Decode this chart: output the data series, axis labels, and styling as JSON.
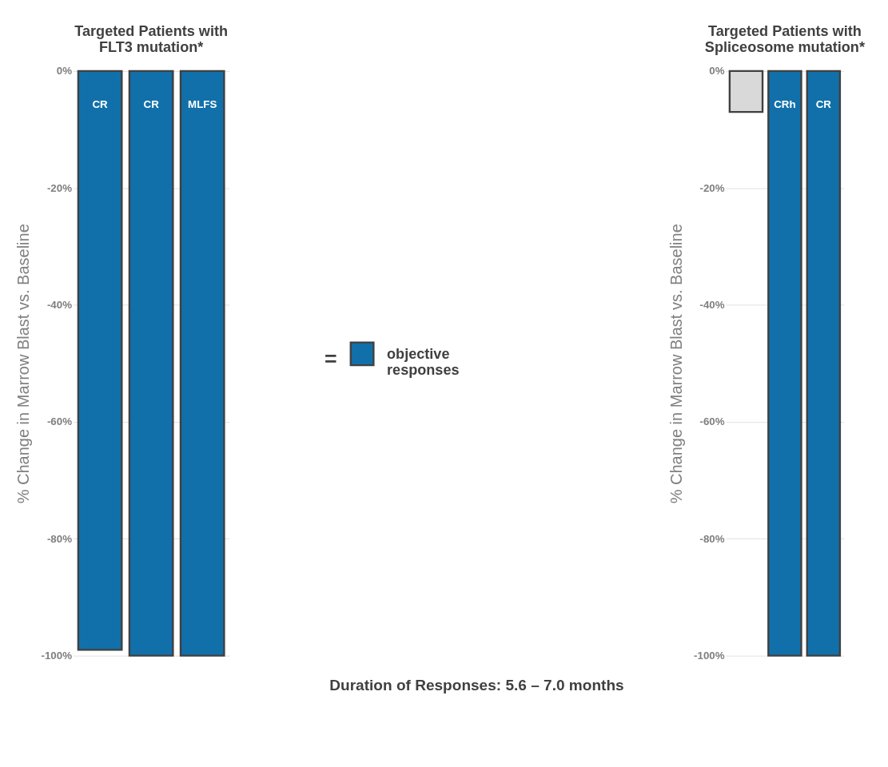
{
  "chart_data": [
    {
      "type": "bar",
      "title": "Targeted Patients with FLT3 mutation*",
      "ylabel": "% Change in Marrow Blast vs. Baseline",
      "categories": [
        null,
        null,
        null
      ],
      "series": [
        {
          "name": "objective responses",
          "color": "#1170aa",
          "values": [
            -99,
            -100,
            -100
          ]
        }
      ],
      "colors": [
        "#1170aa",
        "#1170aa",
        "#1170aa"
      ],
      "value_labels": [
        "CR",
        "CR",
        "MLFS"
      ],
      "legend": "right",
      "legend_title": "=",
      "ylim": [
        -100,
        0
      ],
      "yticks": [
        {
          "value": -100,
          "label": "-100%"
        },
        {
          "value": -80,
          "label": "-80%"
        },
        {
          "value": -60,
          "label": "-60%"
        },
        {
          "value": -40,
          "label": "-40%"
        },
        {
          "value": -20,
          "label": "-20%"
        },
        {
          "value": 0,
          "label": "0%"
        }
      ],
      "grid": "y",
      "annotations": [
        "Duration of Responses:  5.6 – 7.0 months"
      ]
    },
    {
      "type": "bar",
      "title": "Targeted Patients with Spliceosome mutation*",
      "ylabel": "% Change in Marrow Blast vs. Baseline",
      "categories": [
        null,
        null,
        null
      ],
      "values": [
        -7,
        -100,
        -100
      ],
      "colors": [
        "#d9d9d9",
        "#1170aa",
        "#1170aa"
      ],
      "value_labels": [
        null,
        "CRh",
        "CR"
      ],
      "ylim": [
        -100,
        0
      ],
      "yticks": [
        {
          "value": -100,
          "label": "-100%"
        },
        {
          "value": -80,
          "label": "-80%"
        },
        {
          "value": -60,
          "label": "-60%"
        },
        {
          "value": -40,
          "label": "-40%"
        },
        {
          "value": -20,
          "label": "-20%"
        },
        {
          "value": 0,
          "label": "0%"
        }
      ],
      "grid": "y"
    }
  ]
}
